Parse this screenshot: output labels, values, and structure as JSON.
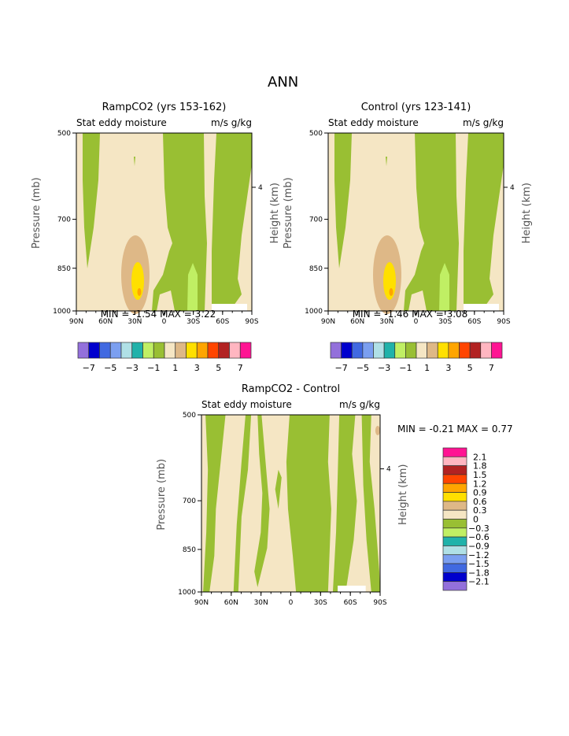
{
  "title": "ANN",
  "chart_data": [
    {
      "type": "heatmap",
      "title": "RampCO2 (yrs 153-162)",
      "subtitle_left": "Stat eddy moisture",
      "subtitle_right": "m/s g/kg",
      "xlabel": "",
      "ylabel": "Pressure (mb)",
      "ylabel_right": "Height (km)",
      "xticks": [
        "90N",
        "60N",
        "30N",
        "0",
        "30S",
        "60S",
        "90S"
      ],
      "yticks": [
        "500",
        "700",
        "850",
        "1000"
      ],
      "yticks_right": [
        "4"
      ],
      "min_text": "MIN =   -1.54   MAX =    3.22",
      "colorbar_labels": [
        "-7",
        "-5",
        "-3",
        "-1",
        "1",
        "3",
        "5",
        "7"
      ],
      "colorbar_colors": [
        "#9370db",
        "#0000cd",
        "#4169e1",
        "#7b9ff0",
        "#b0e0e6",
        "#20b2aa",
        "#c0ef64",
        "#99bf33",
        "#f5e6c4",
        "#deb887",
        "#ffe000",
        "#ffa500",
        "#ff4500",
        "#b22222",
        "#ffb6c1",
        "#ff1493"
      ]
    },
    {
      "type": "heatmap",
      "title": "Control (yrs 123-141)",
      "subtitle_left": "Stat eddy moisture",
      "subtitle_right": "m/s g/kg",
      "xlabel": "",
      "ylabel": "Pressure (mb)",
      "ylabel_right": "Height (km)",
      "xticks": [
        "90N",
        "60N",
        "30N",
        "0",
        "30S",
        "60S",
        "90S"
      ],
      "yticks": [
        "500",
        "700",
        "850",
        "1000"
      ],
      "yticks_right": [
        "4"
      ],
      "min_text": "MIN =   -1.46   MAX =    3.08",
      "colorbar_labels": [
        "-7",
        "-5",
        "-3",
        "-1",
        "1",
        "3",
        "5",
        "7"
      ],
      "colorbar_colors": [
        "#9370db",
        "#0000cd",
        "#4169e1",
        "#7b9ff0",
        "#b0e0e6",
        "#20b2aa",
        "#c0ef64",
        "#99bf33",
        "#f5e6c4",
        "#deb887",
        "#ffe000",
        "#ffa500",
        "#ff4500",
        "#b22222",
        "#ffb6c1",
        "#ff1493"
      ]
    },
    {
      "type": "heatmap",
      "title": "RampCO2 - Control",
      "subtitle_left": "Stat eddy moisture",
      "subtitle_right": "m/s g/kg",
      "xlabel": "",
      "ylabel": "Pressure (mb)",
      "ylabel_right": "Height (km)",
      "xticks": [
        "90N",
        "60N",
        "30N",
        "0",
        "30S",
        "60S",
        "90S"
      ],
      "yticks": [
        "500",
        "700",
        "850",
        "1000"
      ],
      "yticks_right": [
        "4"
      ],
      "min_text": "MIN =   -0.21   MAX =    0.77",
      "colorbar_labels": [
        "2.1",
        "1.8",
        "1.5",
        "1.2",
        "0.9",
        "0.6",
        "0.3",
        "0",
        "-0.3",
        "-0.6",
        "-0.9",
        "-1.2",
        "-1.5",
        "-1.8",
        "-2.1"
      ],
      "colorbar_colors": [
        "#ff1493",
        "#ffb6c1",
        "#b22222",
        "#ff4500",
        "#ffa500",
        "#ffe000",
        "#deb887",
        "#f5e6c4",
        "#99bf33",
        "#c0ef64",
        "#20b2aa",
        "#b0e0e6",
        "#7b9ff0",
        "#4169e1",
        "#0000cd",
        "#9370db"
      ]
    }
  ]
}
